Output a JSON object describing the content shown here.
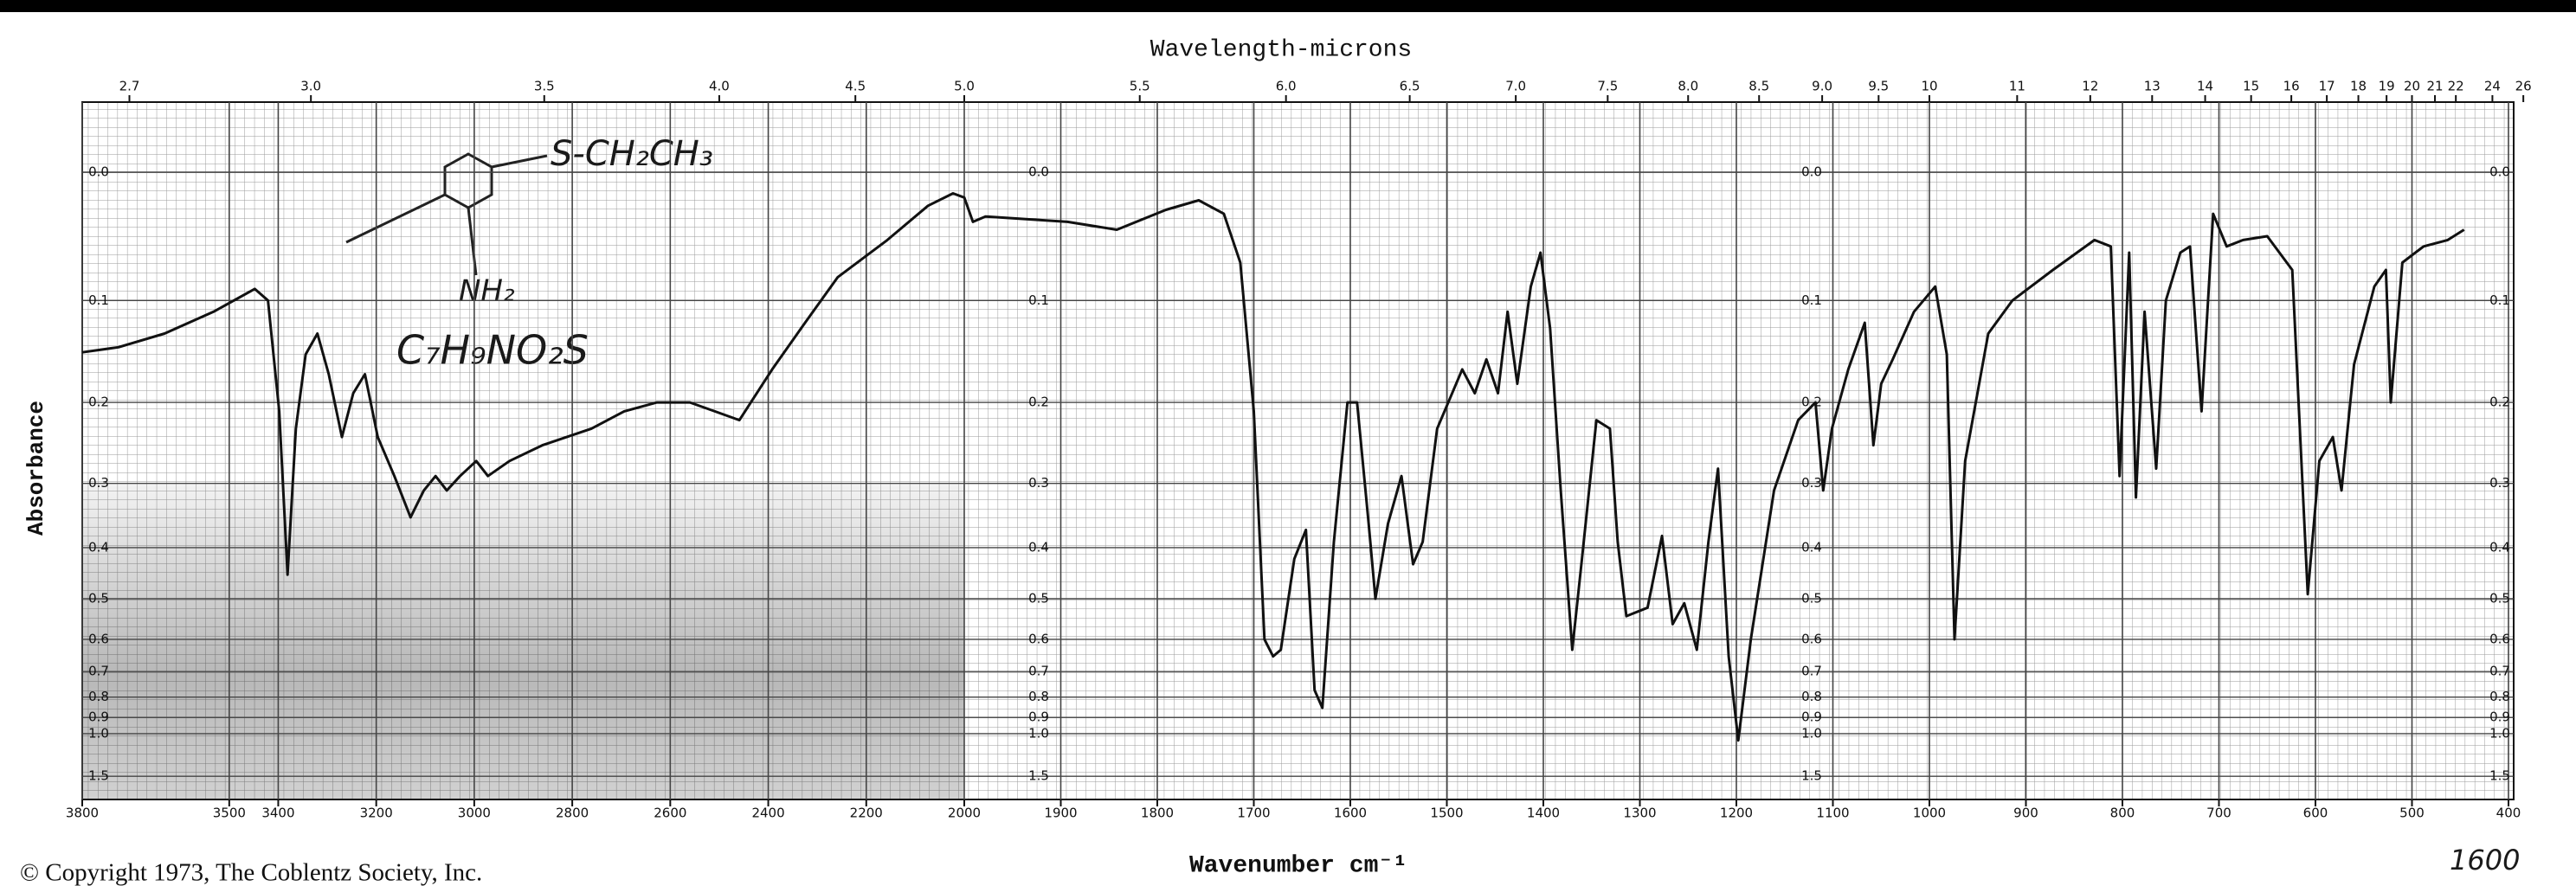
{
  "chart_data": {
    "type": "line",
    "title": "Wavelength-microns",
    "xlabel": "Wavenumber cm⁻¹",
    "ylabel": "Absorbance",
    "copyright": "© Copyright 1973, The Coblentz Society, Inc.",
    "annotations": [
      "S-CH₂CH₃",
      "NH₂",
      "C₇H₉NO₂S",
      "1600"
    ],
    "color": "#111111",
    "grid": true,
    "xlim": [
      3800,
      400
    ],
    "xticks": [
      3800,
      3500,
      3400,
      3200,
      3000,
      2800,
      2600,
      2400,
      2200,
      2000,
      1900,
      1800,
      1700,
      1600,
      1500,
      1400,
      1300,
      1200,
      1100,
      1000,
      900,
      800,
      700,
      600,
      500,
      400
    ],
    "top_xticks": [
      2.7,
      {
        "value": 3,
        "label": "3.0"
      },
      3.5,
      {
        "value": 4,
        "label": "4.0"
      },
      4.5,
      {
        "value": 5,
        "label": "5.0"
      },
      5.5,
      {
        "value": 6,
        "label": "6.0"
      },
      6.5,
      {
        "value": 7,
        "label": "7.0"
      },
      7.5,
      {
        "value": 8,
        "label": "8.0"
      },
      8.5,
      {
        "value": 9,
        "label": "9.0"
      },
      9.5,
      10,
      11,
      12,
      13,
      14,
      15,
      16,
      17,
      18,
      19,
      20,
      21,
      22,
      24,
      26
    ],
    "yticks": [
      {
        "value": 0,
        "label": "0.0"
      },
      0.1,
      0.2,
      0.3,
      0.4,
      0.5,
      0.6,
      0.7,
      0.8,
      0.9,
      {
        "value": 1,
        "label": "1.0"
      },
      1.5
    ],
    "x": [
      3800,
      3726,
      3632,
      3532,
      3448,
      3421,
      3398,
      3381,
      3364,
      3344,
      3320,
      3297,
      3270,
      3247,
      3223,
      3197,
      3163,
      3130,
      3103,
      3079,
      3056,
      3029,
      2996,
      2972,
      2928,
      2861,
      2761,
      2694,
      2627,
      2560,
      2509,
      2459,
      2392,
      2325,
      2258,
      2157,
      2074,
      2023,
      2000,
      1991,
      1978,
      1893,
      1842,
      1791,
      1757,
      1731,
      1714,
      1700,
      1689,
      1680,
      1672,
      1658,
      1646,
      1637,
      1629,
      1617,
      1603,
      1593,
      1581,
      1574,
      1561,
      1547,
      1535,
      1525,
      1510,
      1484,
      1471,
      1459,
      1447,
      1437,
      1427,
      1413,
      1403,
      1393,
      1382,
      1370,
      1360,
      1345,
      1331,
      1323,
      1314,
      1292,
      1277,
      1266,
      1254,
      1241,
      1229,
      1219,
      1208,
      1198,
      1185,
      1161,
      1136,
      1118,
      1110,
      1101,
      1084,
      1067,
      1058,
      1050,
      1038,
      1016,
      994,
      982,
      974,
      963,
      939,
      914,
      872,
      829,
      812,
      803,
      793,
      786,
      777,
      765,
      755,
      740,
      730,
      718,
      706,
      692,
      675,
      650,
      624,
      608,
      596,
      582,
      573,
      560,
      539,
      527,
      522,
      510,
      488,
      463,
      446
    ],
    "values": [
      0.148,
      0.143,
      0.13,
      0.11,
      0.09,
      0.1,
      0.21,
      0.45,
      0.23,
      0.15,
      0.13,
      0.17,
      0.24,
      0.19,
      0.17,
      0.24,
      0.29,
      0.35,
      0.31,
      0.29,
      0.31,
      0.29,
      0.27,
      0.29,
      0.27,
      0.25,
      0.23,
      0.21,
      0.2,
      0.2,
      0.21,
      0.22,
      0.165,
      0.12,
      0.08,
      0.05,
      0.024,
      0.015,
      0.018,
      0.036,
      0.032,
      0.036,
      0.042,
      0.027,
      0.02,
      0.03,
      0.068,
      0.21,
      0.6,
      0.65,
      0.63,
      0.42,
      0.37,
      0.77,
      0.85,
      0.39,
      0.2,
      0.2,
      0.36,
      0.5,
      0.36,
      0.29,
      0.43,
      0.39,
      0.23,
      0.165,
      0.19,
      0.155,
      0.19,
      0.11,
      0.18,
      0.088,
      0.06,
      0.125,
      0.31,
      0.63,
      0.42,
      0.22,
      0.23,
      0.39,
      0.54,
      0.52,
      0.38,
      0.56,
      0.51,
      0.63,
      0.39,
      0.28,
      0.65,
      1.05,
      0.6,
      0.31,
      0.22,
      0.2,
      0.31,
      0.23,
      0.165,
      0.12,
      0.25,
      0.18,
      0.155,
      0.11,
      0.088,
      0.15,
      0.6,
      0.27,
      0.13,
      0.1,
      0.074,
      0.05,
      0.055,
      0.29,
      0.06,
      0.32,
      0.11,
      0.28,
      0.1,
      0.06,
      0.055,
      0.21,
      0.03,
      0.055,
      0.05,
      0.047,
      0.074,
      0.49,
      0.27,
      0.24,
      0.31,
      0.16,
      0.088,
      0.074,
      0.2,
      0.068,
      0.055,
      0.05,
      0.042
    ]
  }
}
